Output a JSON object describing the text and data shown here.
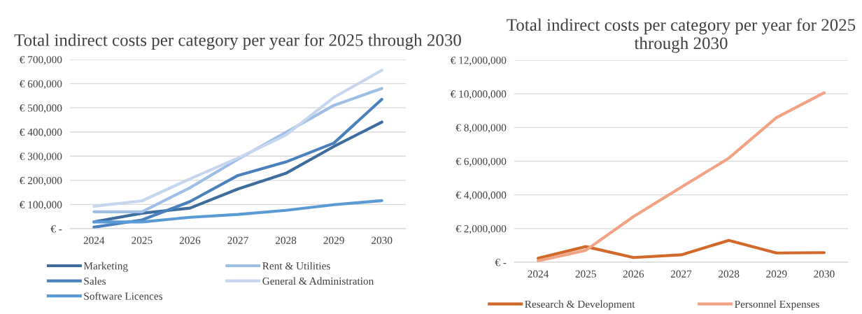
{
  "chart_data": [
    {
      "type": "line",
      "title": "Total indirect costs per category per year for 2025 through 2030",
      "categories": [
        "2024",
        "2025",
        "2026",
        "2027",
        "2028",
        "2029",
        "2030"
      ],
      "ylim": [
        0,
        700000
      ],
      "yticks": [
        {
          "value": 0,
          "label": "€ -"
        },
        {
          "value": 100000,
          "label": "€ 100,000"
        },
        {
          "value": 200000,
          "label": "€ 200,000"
        },
        {
          "value": 300000,
          "label": "€ 300,000"
        },
        {
          "value": 400000,
          "label": "€ 400,000"
        },
        {
          "value": 500000,
          "label": "€ 500,000"
        },
        {
          "value": 600000,
          "label": "€ 600,000"
        },
        {
          "value": 700000,
          "label": "€ 700,000"
        }
      ],
      "grid": "y",
      "legend": "bottom",
      "marker": "none",
      "series": [
        {
          "name": "Marketing",
          "color": "#3e6c9c",
          "values": [
            28000,
            64000,
            85000,
            164000,
            229000,
            340000,
            441000
          ]
        },
        {
          "name": "Sales",
          "color": "#4a81bd",
          "values": [
            6000,
            36000,
            112000,
            220000,
            276000,
            354000,
            535000
          ]
        },
        {
          "name": "Software Licences",
          "color": "#5b9bd5",
          "values": [
            28000,
            28000,
            47000,
            59000,
            76000,
            99000,
            116000
          ]
        },
        {
          "name": "Rent & Utilities",
          "color": "#9dbfe6",
          "values": [
            70000,
            70000,
            169000,
            287000,
            398000,
            510000,
            580000
          ]
        },
        {
          "name": "General & Administration",
          "color": "#c5d6ee",
          "values": [
            93000,
            115000,
            206000,
            292000,
            387000,
            543000,
            655000
          ]
        }
      ]
    },
    {
      "type": "line",
      "title": "Total indirect costs per category per year for 2025 through 2030",
      "categories": [
        "2024",
        "2025",
        "2026",
        "2027",
        "2028",
        "2029",
        "2030"
      ],
      "ylim": [
        0,
        12000000
      ],
      "yticks": [
        {
          "value": 0,
          "label": "€ -"
        },
        {
          "value": 2000000,
          "label": "€ 2,000,000"
        },
        {
          "value": 4000000,
          "label": "€ 4,000,000"
        },
        {
          "value": 6000000,
          "label": "€ 6,000,000"
        },
        {
          "value": 8000000,
          "label": "€ 8,000,000"
        },
        {
          "value": 10000000,
          "label": "€ 10,000,000"
        },
        {
          "value": 12000000,
          "label": "€ 12,000,000"
        }
      ],
      "grid": "y",
      "legend": "bottom",
      "marker": "none",
      "series": [
        {
          "name": "Research & Development",
          "color": "#d0692a",
          "values": [
            240000,
            930000,
            280000,
            440000,
            1300000,
            550000,
            570000
          ]
        },
        {
          "name": "Personnel Expenses",
          "color": "#f2a384",
          "values": [
            80000,
            710000,
            2710000,
            4450000,
            6180000,
            8590000,
            10060000
          ]
        }
      ]
    }
  ]
}
